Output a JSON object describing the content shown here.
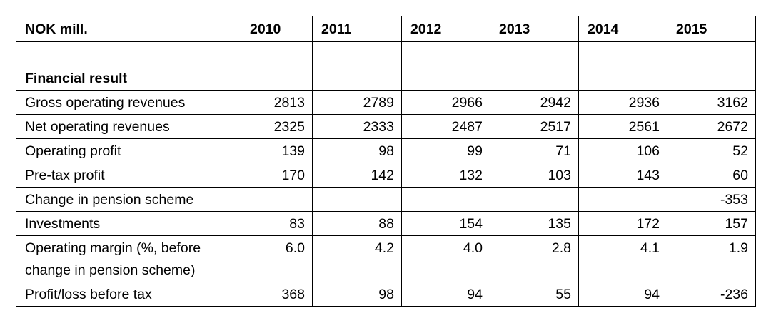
{
  "table": {
    "header": [
      "NOK mill.",
      "2010",
      "2011",
      "2012",
      "2013",
      "2014",
      "2015"
    ],
    "rows": [
      [
        null,
        null,
        null,
        null,
        null,
        null,
        null
      ],
      [
        "Financial result",
        null,
        null,
        null,
        null,
        null,
        null
      ],
      [
        "Gross operating revenues",
        "2813",
        "2789",
        "2966",
        "2942",
        "2936",
        "3162"
      ],
      [
        "Net operating revenues",
        "2325",
        "2333",
        "2487",
        "2517",
        "2561",
        "2672"
      ],
      [
        "Operating profit",
        "139",
        "98",
        "99",
        "71",
        "106",
        "52"
      ],
      [
        "Pre-tax profit",
        "170",
        "142",
        "132",
        "103",
        "143",
        "60"
      ],
      [
        "Change in pension scheme",
        null,
        null,
        null,
        null,
        null,
        "-353"
      ],
      [
        "Investments",
        "83",
        "88",
        "154",
        "135",
        "172",
        "157"
      ],
      [
        "Operating margin (%, before change in pension scheme)",
        "6.0",
        "4.2",
        "4.0",
        "2.8",
        "4.1",
        "1.9"
      ],
      [
        "Profit/loss before tax",
        "368",
        "98",
        "94",
        "55",
        "94",
        "-236"
      ]
    ]
  }
}
